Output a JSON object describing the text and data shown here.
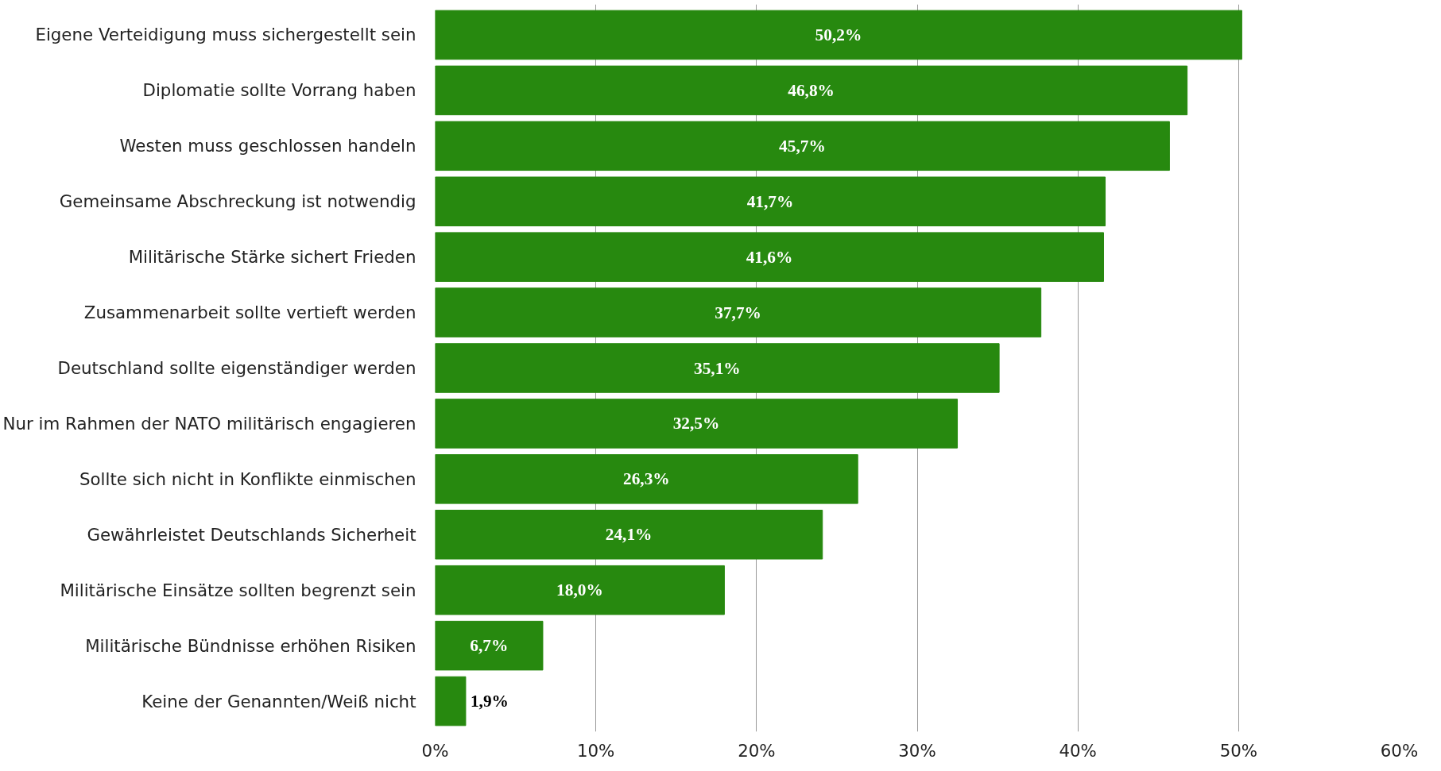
{
  "chart_data": {
    "type": "bar",
    "orientation": "horizontal",
    "categories": [
      "Eigene Verteidigung muss sichergestellt sein",
      "Diplomatie sollte Vorrang haben",
      "Westen muss geschlossen handeln",
      "Gemeinsame Abschreckung ist notwendig",
      "Militärische Stärke sichert Frieden",
      "Zusammenarbeit sollte vertieft werden",
      "Deutschland sollte eigenständiger werden",
      "Nur im Rahmen der NATO militärisch engagieren",
      "Sollte sich nicht in Konflikte einmischen",
      "Gewährleistet Deutschlands Sicherheit",
      "Militärische Einsätze sollten begrenzt sein",
      "Militärische Bündnisse erhöhen Risiken",
      "Keine der Genannten/Weiß nicht"
    ],
    "values": [
      50.2,
      46.8,
      45.7,
      41.7,
      41.6,
      37.7,
      35.1,
      32.5,
      26.3,
      24.1,
      18.0,
      6.7,
      1.9
    ],
    "value_labels": [
      "50,2%",
      "46,8%",
      "45,7%",
      "41,7%",
      "41,6%",
      "37,7%",
      "35,1%",
      "32,5%",
      "26,3%",
      "24,1%",
      "18,0%",
      "6,7%",
      "1,9%"
    ],
    "color": "#27890f",
    "xlim": [
      0,
      60
    ],
    "xticks": [
      {
        "value": 0,
        "label": "0%"
      },
      {
        "value": 10,
        "label": "10%"
      },
      {
        "value": 20,
        "label": "20%"
      },
      {
        "value": 30,
        "label": "30%"
      },
      {
        "value": 40,
        "label": "40%"
      },
      {
        "value": 50,
        "label": "50%"
      },
      {
        "value": 60,
        "label": "60%"
      }
    ],
    "grid": "x"
  }
}
